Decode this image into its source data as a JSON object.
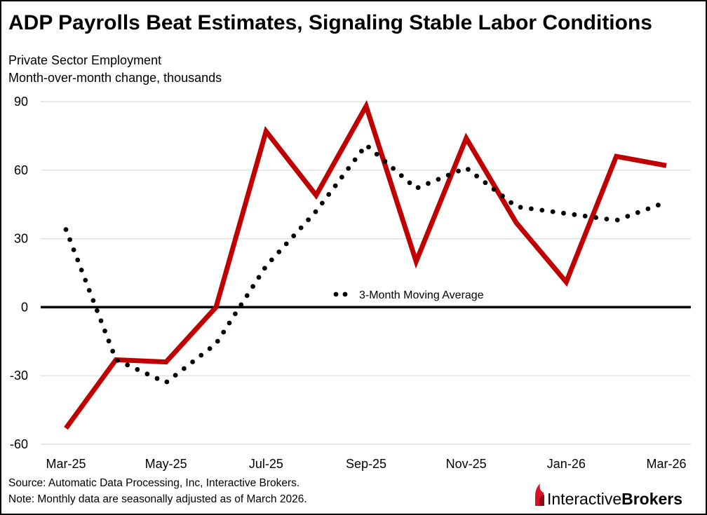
{
  "title": "ADP Payrolls Beat Estimates, Signaling Stable Labor Conditions",
  "subtitle_line1": "Private Sector Employment",
  "subtitle_line2": "Month-over-month change, thousands",
  "source": "Source: Automatic Data Processing, Inc, Interactive Brokers.",
  "note": "Note: Monthly data are seasonally adjusted as of March 2026.",
  "brand": {
    "name_part1": "Interactive",
    "name_part2": "Brokers",
    "logo_icon": "interactive-brokers-flame-icon",
    "logo_color": "#d81222"
  },
  "colors": {
    "payrolls_line": "#c00000",
    "moving_average": "#000000",
    "gridline": "#d9d9d9",
    "zero_line": "#000000"
  },
  "chart_data": {
    "type": "line",
    "title": "ADP Payrolls Beat Estimates, Signaling Stable Labor Conditions",
    "ylabel": "Month-over-month change, thousands",
    "xlabel": "",
    "ylim": [
      -60,
      90
    ],
    "y_ticks": [
      90,
      60,
      30,
      0,
      -30,
      -60
    ],
    "grid": true,
    "legend_placement": "center",
    "x": [
      "Mar-25",
      "Apr-25",
      "May-25",
      "Jun-25",
      "Jul-25",
      "Aug-25",
      "Sep-25",
      "Oct-25",
      "Nov-25",
      "Dec-25",
      "Jan-26",
      "Feb-26",
      "Mar-26"
    ],
    "x_tick_labels": [
      "Mar-25",
      "May-25",
      "Jul-25",
      "Sep-25",
      "Nov-25",
      "Jan-26",
      "Mar-26"
    ],
    "series": [
      {
        "values": [
          -53,
          -23,
          -24,
          0,
          77,
          49,
          88,
          20,
          74,
          37,
          11,
          66,
          62
        ],
        "style": "solid"
      },
      {
        "name": "3-Month Moving Average",
        "values": [
          34,
          -23,
          -33,
          -16,
          18,
          42,
          71,
          52,
          61,
          44,
          41,
          38,
          46
        ],
        "style": "dotted"
      }
    ]
  }
}
